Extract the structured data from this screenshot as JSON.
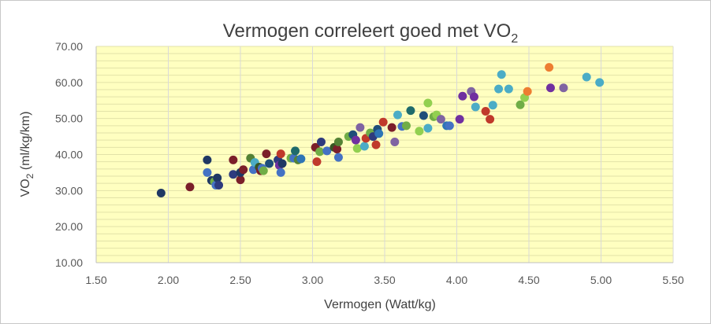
{
  "chart_data": {
    "type": "scatter",
    "title_main": "Vermogen correleert goed met VO",
    "title_sub": "2",
    "xlabel": "Vermogen (Watt/kg)",
    "ylabel_main": "VO",
    "ylabel_sub": "2",
    "ylabel_rest": " (ml/kg/km)",
    "xlim": [
      1.5,
      5.5
    ],
    "ylim": [
      10,
      70
    ],
    "x_ticks": [
      "1.50",
      "2.00",
      "2.50",
      "3.00",
      "3.50",
      "4.00",
      "4.50",
      "5.00",
      "5.50"
    ],
    "y_ticks": [
      "10.00",
      "20.00",
      "30.00",
      "40.00",
      "50.00",
      "60.00",
      "70.00"
    ],
    "grid": "minor-horizontal",
    "plot_background": "#ffffc0",
    "points": [
      {
        "x": 1.95,
        "y": 29.3,
        "color": "#1f3864"
      },
      {
        "x": 2.15,
        "y": 31.0,
        "color": "#7b1f2a"
      },
      {
        "x": 2.27,
        "y": 38.5,
        "color": "#1f3864"
      },
      {
        "x": 2.27,
        "y": 35.0,
        "color": "#4472c4"
      },
      {
        "x": 2.3,
        "y": 32.8,
        "color": "#1f3864"
      },
      {
        "x": 2.32,
        "y": 32.5,
        "color": "#70ad47"
      },
      {
        "x": 2.33,
        "y": 31.5,
        "color": "#4472c4"
      },
      {
        "x": 2.34,
        "y": 33.5,
        "color": "#1f3864"
      },
      {
        "x": 2.35,
        "y": 31.5,
        "color": "#2e3b7e"
      },
      {
        "x": 2.45,
        "y": 38.5,
        "color": "#7b1f2a"
      },
      {
        "x": 2.45,
        "y": 34.5,
        "color": "#2e3b7e"
      },
      {
        "x": 2.5,
        "y": 33.0,
        "color": "#7b1f2a"
      },
      {
        "x": 2.5,
        "y": 35.0,
        "color": "#1f3864"
      },
      {
        "x": 2.52,
        "y": 35.8,
        "color": "#7b1f2a"
      },
      {
        "x": 2.57,
        "y": 39.0,
        "color": "#548235"
      },
      {
        "x": 2.59,
        "y": 35.8,
        "color": "#4472c4"
      },
      {
        "x": 2.6,
        "y": 37.8,
        "color": "#4bacc6"
      },
      {
        "x": 2.63,
        "y": 36.5,
        "color": "#375623"
      },
      {
        "x": 2.64,
        "y": 35.5,
        "color": "#7b1f2a"
      },
      {
        "x": 2.65,
        "y": 36.2,
        "color": "#4472c4"
      },
      {
        "x": 2.66,
        "y": 35.5,
        "color": "#70ad47"
      },
      {
        "x": 2.68,
        "y": 40.2,
        "color": "#7b1f2a"
      },
      {
        "x": 2.7,
        "y": 37.5,
        "color": "#1f4e79"
      },
      {
        "x": 2.76,
        "y": 38.5,
        "color": "#2e3b7e"
      },
      {
        "x": 2.77,
        "y": 37.0,
        "color": "#7030a0"
      },
      {
        "x": 2.78,
        "y": 35.0,
        "color": "#4472c4"
      },
      {
        "x": 2.78,
        "y": 40.2,
        "color": "#c0392b"
      },
      {
        "x": 2.79,
        "y": 37.5,
        "color": "#1f3864"
      },
      {
        "x": 2.85,
        "y": 39.0,
        "color": "#70ad47"
      },
      {
        "x": 2.87,
        "y": 39.0,
        "color": "#4472c4"
      },
      {
        "x": 2.88,
        "y": 41.0,
        "color": "#1f6b6b"
      },
      {
        "x": 2.9,
        "y": 38.5,
        "color": "#548235"
      },
      {
        "x": 2.92,
        "y": 38.8,
        "color": "#2e75b6"
      },
      {
        "x": 3.02,
        "y": 42.0,
        "color": "#7b1f2a"
      },
      {
        "x": 3.03,
        "y": 38.0,
        "color": "#c0392b"
      },
      {
        "x": 3.05,
        "y": 40.8,
        "color": "#70ad47"
      },
      {
        "x": 3.06,
        "y": 43.5,
        "color": "#2e3b7e"
      },
      {
        "x": 3.1,
        "y": 41.0,
        "color": "#4472c4"
      },
      {
        "x": 3.15,
        "y": 42.0,
        "color": "#375623"
      },
      {
        "x": 3.17,
        "y": 41.5,
        "color": "#7b1f2a"
      },
      {
        "x": 3.18,
        "y": 39.2,
        "color": "#4472c4"
      },
      {
        "x": 3.18,
        "y": 43.5,
        "color": "#548235"
      },
      {
        "x": 3.25,
        "y": 45.0,
        "color": "#70ad47"
      },
      {
        "x": 3.28,
        "y": 45.5,
        "color": "#1f4e79"
      },
      {
        "x": 3.3,
        "y": 44.0,
        "color": "#7030a0"
      },
      {
        "x": 3.31,
        "y": 41.7,
        "color": "#92d050"
      },
      {
        "x": 3.33,
        "y": 47.5,
        "color": "#8064a2"
      },
      {
        "x": 3.36,
        "y": 42.3,
        "color": "#4bacc6"
      },
      {
        "x": 3.37,
        "y": 44.5,
        "color": "#c0392b"
      },
      {
        "x": 3.4,
        "y": 46.0,
        "color": "#70ad47"
      },
      {
        "x": 3.42,
        "y": 45.0,
        "color": "#2e3b7e"
      },
      {
        "x": 3.44,
        "y": 42.7,
        "color": "#c0392b"
      },
      {
        "x": 3.45,
        "y": 47.0,
        "color": "#1f4e79"
      },
      {
        "x": 3.46,
        "y": 45.8,
        "color": "#2e75b6"
      },
      {
        "x": 3.49,
        "y": 49.0,
        "color": "#c0392b"
      },
      {
        "x": 3.55,
        "y": 47.5,
        "color": "#7b1f2a"
      },
      {
        "x": 3.57,
        "y": 43.5,
        "color": "#8064a2"
      },
      {
        "x": 3.59,
        "y": 51.0,
        "color": "#4bacc6"
      },
      {
        "x": 3.62,
        "y": 47.8,
        "color": "#4472c4"
      },
      {
        "x": 3.65,
        "y": 48.0,
        "color": "#70ad47"
      },
      {
        "x": 3.68,
        "y": 52.2,
        "color": "#1f6b6b"
      },
      {
        "x": 3.74,
        "y": 46.5,
        "color": "#92d050"
      },
      {
        "x": 3.77,
        "y": 50.8,
        "color": "#1f4e79"
      },
      {
        "x": 3.8,
        "y": 54.3,
        "color": "#92d050"
      },
      {
        "x": 3.8,
        "y": 47.3,
        "color": "#4bacc6"
      },
      {
        "x": 3.84,
        "y": 50.5,
        "color": "#70ad47"
      },
      {
        "x": 3.86,
        "y": 51.0,
        "color": "#92d050"
      },
      {
        "x": 3.89,
        "y": 49.8,
        "color": "#8064a2"
      },
      {
        "x": 3.93,
        "y": 48.0,
        "color": "#2e75b6"
      },
      {
        "x": 3.95,
        "y": 48.0,
        "color": "#4472c4"
      },
      {
        "x": 4.02,
        "y": 49.8,
        "color": "#7030a0"
      },
      {
        "x": 4.04,
        "y": 56.2,
        "color": "#7030a0"
      },
      {
        "x": 4.1,
        "y": 57.5,
        "color": "#8064a2"
      },
      {
        "x": 4.12,
        "y": 56.0,
        "color": "#7030a0"
      },
      {
        "x": 4.13,
        "y": 53.2,
        "color": "#4bacc6"
      },
      {
        "x": 4.2,
        "y": 52.0,
        "color": "#c0392b"
      },
      {
        "x": 4.23,
        "y": 49.8,
        "color": "#c0392b"
      },
      {
        "x": 4.25,
        "y": 53.7,
        "color": "#4bacc6"
      },
      {
        "x": 4.29,
        "y": 58.2,
        "color": "#4bacc6"
      },
      {
        "x": 4.31,
        "y": 62.2,
        "color": "#4bacc6"
      },
      {
        "x": 4.36,
        "y": 58.2,
        "color": "#4bacc6"
      },
      {
        "x": 4.44,
        "y": 53.8,
        "color": "#70ad47"
      },
      {
        "x": 4.47,
        "y": 55.8,
        "color": "#92d050"
      },
      {
        "x": 4.49,
        "y": 57.5,
        "color": "#ed7d31"
      },
      {
        "x": 4.64,
        "y": 64.2,
        "color": "#ed7d31"
      },
      {
        "x": 4.65,
        "y": 58.5,
        "color": "#7030a0"
      },
      {
        "x": 4.74,
        "y": 58.5,
        "color": "#8064a2"
      },
      {
        "x": 4.9,
        "y": 61.5,
        "color": "#4bacc6"
      },
      {
        "x": 4.99,
        "y": 60.0,
        "color": "#4bacc6"
      }
    ]
  }
}
